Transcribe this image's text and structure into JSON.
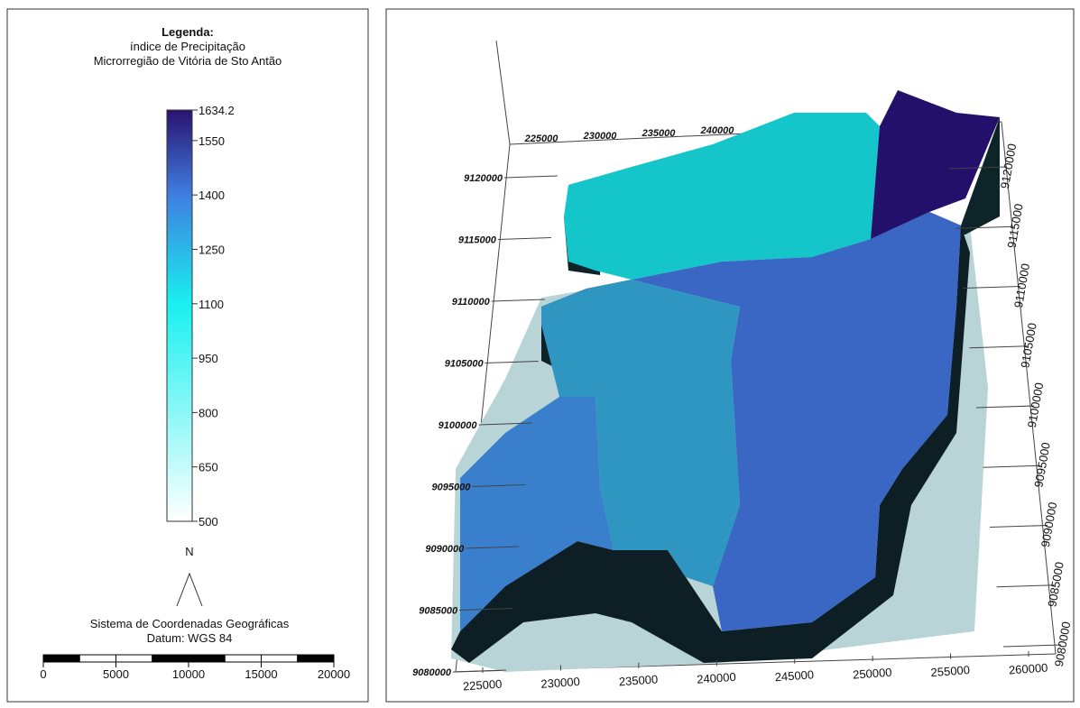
{
  "legend": {
    "title": "Legenda:",
    "subtitle": "índice de Precipitação",
    "region": "Microrregião de Vitória de Sto Antão",
    "colorbar": {
      "lim": [
        500,
        1634.2
      ],
      "ticks": [
        1634.2,
        1550,
        1400,
        1250,
        1100,
        950,
        800,
        650,
        500
      ],
      "stops": [
        {
          "value": 500,
          "color": "#ffffff"
        },
        {
          "value": 1100,
          "color": "#19f0f0"
        },
        {
          "value": 1400,
          "color": "#3f7fe0"
        },
        {
          "value": 1634.2,
          "color": "#2a1270"
        }
      ]
    },
    "north": "N",
    "crs": "Sistema de Coordenadas Geográficas",
    "datum": "Datum: WGS 84",
    "scale_ticks": [
      0,
      5000,
      10000,
      15000,
      20000
    ]
  },
  "map": {
    "x_ticks_top": [
      225000,
      230000,
      235000,
      240000
    ],
    "x_ticks_bottom": [
      225000,
      230000,
      235000,
      240000,
      245000,
      250000,
      255000,
      260000
    ],
    "y_ticks_left": [
      9120000,
      9115000,
      9110000,
      9105000,
      9100000,
      9095000,
      9090000,
      9085000,
      9080000
    ],
    "y_ticks_right": [
      9120000,
      9115000,
      9110000,
      9105000,
      9100000,
      9095000,
      9090000,
      9085000,
      9080000
    ]
  }
}
